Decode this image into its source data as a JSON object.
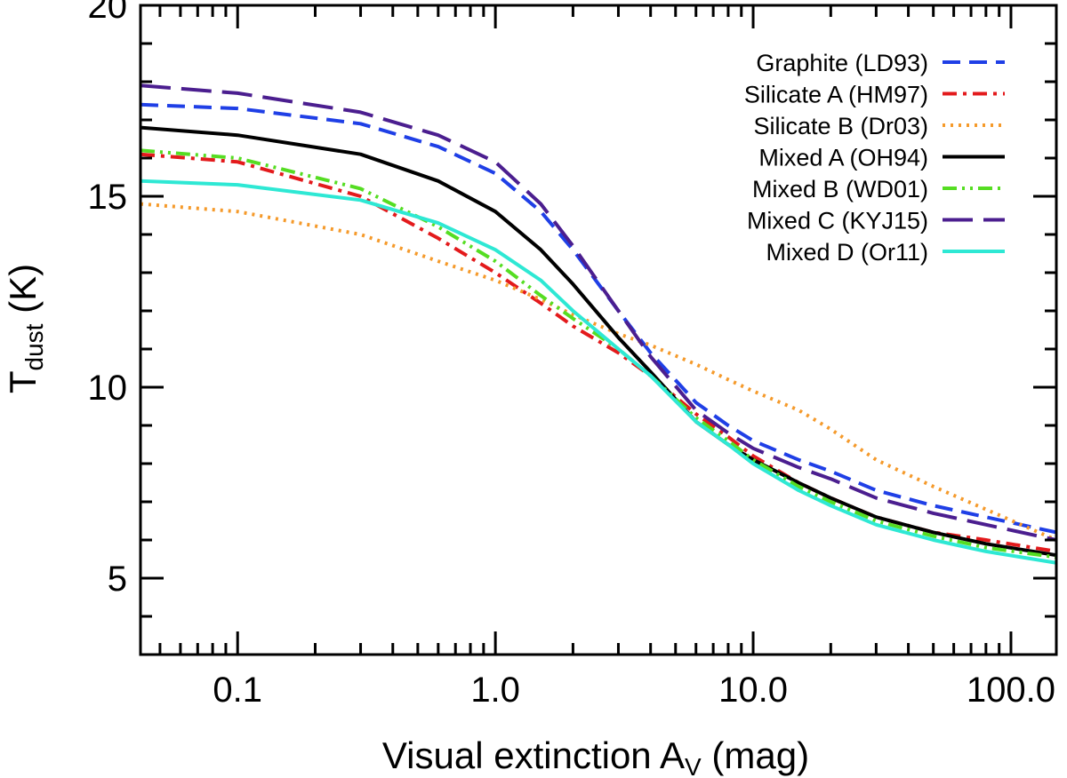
{
  "chart_data": {
    "type": "line",
    "xscale": "log",
    "xlim": [
      0.042,
      150
    ],
    "ylim": [
      3,
      20
    ],
    "xlabel_main": "Visual extinction A",
    "xlabel_sub": "V",
    "xlabel_unit": " (mag)",
    "ylabel_main": "T",
    "ylabel_sub": "dust",
    "ylabel_unit": " (K)",
    "x_ticks": [
      {
        "value": 0.1,
        "label": "0.1"
      },
      {
        "value": 1.0,
        "label": "1.0"
      },
      {
        "value": 10.0,
        "label": "10.0"
      },
      {
        "value": 100.0,
        "label": "100.0"
      }
    ],
    "y_ticks": [
      {
        "value": 5,
        "label": "5"
      },
      {
        "value": 10,
        "label": "10"
      },
      {
        "value": 15,
        "label": "15"
      },
      {
        "value": 20,
        "label": "20"
      }
    ],
    "legend_position": "top-right",
    "series": [
      {
        "name": "Graphite (LD93)",
        "color": "#1f3fe6",
        "dash": "dash",
        "x": [
          0.042,
          0.1,
          0.3,
          0.6,
          1.0,
          1.5,
          2.0,
          3.0,
          4.0,
          6.0,
          8.0,
          10,
          15,
          20,
          30,
          50,
          80,
          150
        ],
        "y": [
          17.4,
          17.3,
          16.9,
          16.3,
          15.6,
          14.6,
          13.6,
          12.0,
          10.9,
          9.6,
          9.0,
          8.6,
          8.1,
          7.8,
          7.3,
          6.9,
          6.6,
          6.2
        ]
      },
      {
        "name": "Silicate A (HM97)",
        "color": "#e31a1c",
        "dash": "dashdot",
        "x": [
          0.042,
          0.1,
          0.3,
          0.6,
          1.0,
          1.5,
          2.0,
          3.0,
          4.0,
          6.0,
          8.0,
          10,
          15,
          20,
          30,
          50,
          80,
          150
        ],
        "y": [
          16.1,
          15.9,
          15.0,
          13.9,
          13.0,
          12.2,
          11.6,
          10.9,
          10.3,
          9.3,
          8.7,
          8.2,
          7.5,
          7.1,
          6.6,
          6.2,
          6.0,
          5.7
        ]
      },
      {
        "name": "Silicate B (Dr03)",
        "color": "#f59a2b",
        "dash": "dot",
        "x": [
          0.042,
          0.1,
          0.3,
          0.6,
          1.0,
          1.5,
          2.0,
          3.0,
          4.0,
          6.0,
          8.0,
          10,
          15,
          20,
          30,
          50,
          80,
          150
        ],
        "y": [
          14.8,
          14.6,
          14.0,
          13.3,
          12.8,
          12.3,
          11.9,
          11.4,
          11.1,
          10.6,
          10.2,
          9.9,
          9.4,
          8.9,
          8.1,
          7.4,
          6.8,
          6.0
        ]
      },
      {
        "name": "Mixed A (OH94)",
        "color": "#000000",
        "dash": "solid",
        "x": [
          0.042,
          0.1,
          0.3,
          0.6,
          1.0,
          1.5,
          2.0,
          3.0,
          4.0,
          6.0,
          8.0,
          10,
          15,
          20,
          30,
          50,
          80,
          150
        ],
        "y": [
          16.8,
          16.6,
          16.1,
          15.4,
          14.6,
          13.6,
          12.7,
          11.3,
          10.4,
          9.1,
          8.5,
          8.1,
          7.5,
          7.1,
          6.6,
          6.2,
          5.9,
          5.6
        ]
      },
      {
        "name": "Mixed B (WD01)",
        "color": "#55dd22",
        "dash": "dashdotdot",
        "x": [
          0.042,
          0.1,
          0.3,
          0.6,
          1.0,
          1.5,
          2.0,
          3.0,
          4.0,
          6.0,
          8.0,
          10,
          15,
          20,
          30,
          50,
          80,
          150
        ],
        "y": [
          16.2,
          16.0,
          15.2,
          14.2,
          13.3,
          12.4,
          11.8,
          11.0,
          10.3,
          9.2,
          8.6,
          8.1,
          7.4,
          7.0,
          6.5,
          6.1,
          5.8,
          5.55
        ]
      },
      {
        "name": "Mixed C (KYJ15)",
        "color": "#4b1e8f",
        "dash": "longdash",
        "x": [
          0.042,
          0.1,
          0.3,
          0.6,
          1.0,
          1.5,
          2.0,
          3.0,
          4.0,
          6.0,
          8.0,
          10,
          15,
          20,
          30,
          50,
          80,
          150
        ],
        "y": [
          17.9,
          17.7,
          17.2,
          16.6,
          15.9,
          14.8,
          13.7,
          12.0,
          10.8,
          9.4,
          8.8,
          8.4,
          7.9,
          7.6,
          7.1,
          6.7,
          6.4,
          6.0
        ]
      },
      {
        "name": "Mixed D (Or11)",
        "color": "#2ee8d4",
        "dash": "solid",
        "x": [
          0.042,
          0.1,
          0.3,
          0.6,
          1.0,
          1.5,
          2.0,
          3.0,
          4.0,
          6.0,
          8.0,
          10,
          15,
          20,
          30,
          50,
          80,
          150
        ],
        "y": [
          15.4,
          15.3,
          14.9,
          14.3,
          13.6,
          12.8,
          12.0,
          11.0,
          10.3,
          9.1,
          8.5,
          8.0,
          7.3,
          6.9,
          6.4,
          6.0,
          5.7,
          5.4
        ]
      }
    ]
  }
}
